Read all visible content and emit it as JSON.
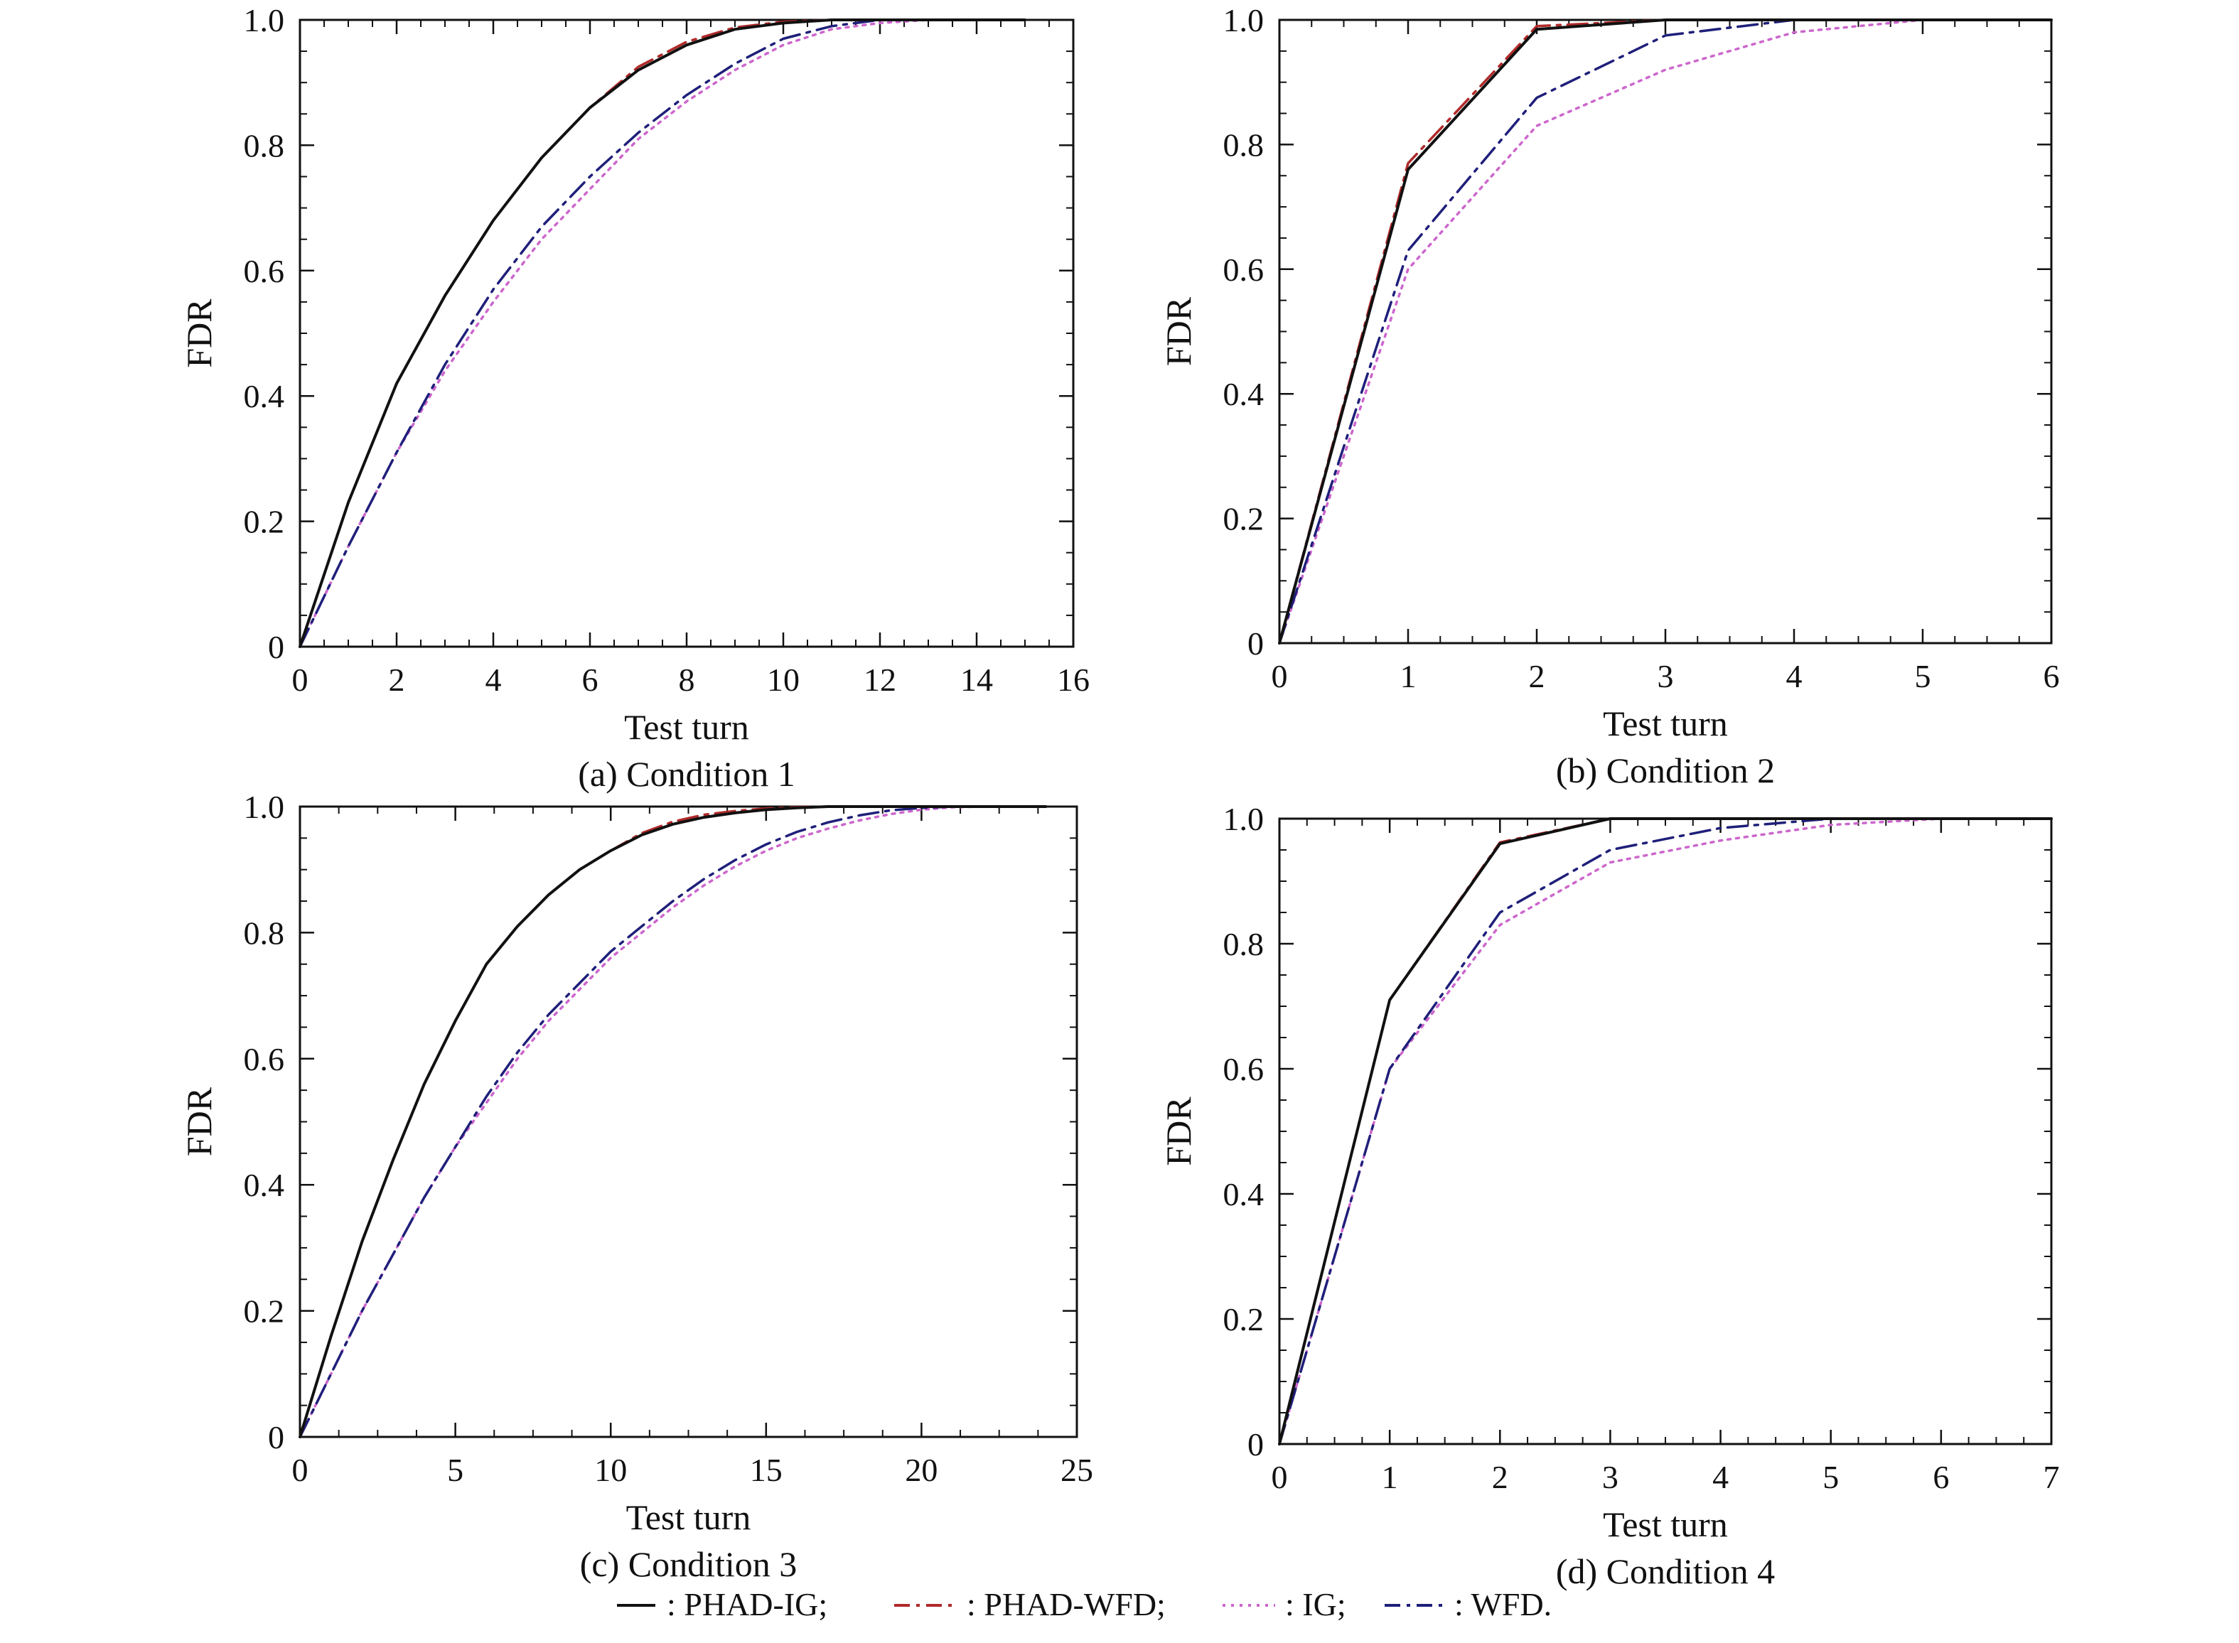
{
  "chart_data": [
    {
      "type": "line",
      "caption": "(a) Condition 1",
      "xlabel": "Test turn",
      "ylabel": "FDR",
      "xlim": [
        0,
        16
      ],
      "ylim": [
        0,
        1.0
      ],
      "xticks": [
        0,
        2,
        4,
        6,
        8,
        10,
        12,
        14,
        16
      ],
      "yticks": [
        0,
        0.2,
        0.4,
        0.6,
        0.8,
        1.0
      ],
      "ytick_labels": [
        "0",
        "0.2",
        "0.4",
        "0.6",
        "0.8",
        "1.0"
      ],
      "grid": false,
      "series": [
        {
          "key": "phad_ig",
          "x": [
            0,
            1,
            2,
            3,
            4,
            5,
            6,
            7,
            8,
            9,
            10,
            11,
            12,
            13,
            14,
            15
          ],
          "y": [
            0,
            0.23,
            0.42,
            0.56,
            0.68,
            0.78,
            0.86,
            0.92,
            0.96,
            0.985,
            0.995,
            1.0,
            1.0,
            1.0,
            1.0,
            1.0
          ]
        },
        {
          "key": "phad_wfd",
          "x": [
            0,
            1,
            2,
            3,
            4,
            5,
            6,
            7,
            8,
            9,
            10,
            11,
            12,
            13,
            14,
            15
          ],
          "y": [
            0,
            0.23,
            0.42,
            0.56,
            0.68,
            0.78,
            0.86,
            0.925,
            0.965,
            0.988,
            0.997,
            1.0,
            1.0,
            1.0,
            1.0,
            1.0
          ]
        },
        {
          "key": "ig",
          "x": [
            0,
            1,
            2,
            3,
            4,
            5,
            6,
            7,
            8,
            9,
            10,
            11,
            12,
            13,
            14,
            15
          ],
          "y": [
            0,
            0.16,
            0.31,
            0.44,
            0.55,
            0.65,
            0.73,
            0.81,
            0.87,
            0.92,
            0.96,
            0.985,
            0.995,
            1.0,
            1.0,
            1.0
          ]
        },
        {
          "key": "wfd",
          "x": [
            0,
            1,
            2,
            3,
            4,
            5,
            6,
            7,
            8,
            9,
            10,
            11,
            12,
            13,
            14,
            15
          ],
          "y": [
            0,
            0.16,
            0.31,
            0.45,
            0.57,
            0.67,
            0.75,
            0.82,
            0.88,
            0.93,
            0.97,
            0.99,
            1.0,
            1.0,
            1.0,
            1.0
          ]
        }
      ]
    },
    {
      "type": "line",
      "caption": "(b) Condition 2",
      "xlabel": "Test turn",
      "ylabel": "FDR",
      "xlim": [
        0,
        6
      ],
      "ylim": [
        0,
        1.0
      ],
      "xticks": [
        0,
        1,
        2,
        3,
        4,
        5,
        6
      ],
      "yticks": [
        0,
        0.2,
        0.4,
        0.6,
        0.8,
        1.0
      ],
      "ytick_labels": [
        "0",
        "0.2",
        "0.4",
        "0.6",
        "0.8",
        "1.0"
      ],
      "grid": false,
      "series": [
        {
          "key": "phad_ig",
          "x": [
            0,
            1,
            2,
            3,
            4,
            5,
            6
          ],
          "y": [
            0,
            0.76,
            0.985,
            1.0,
            1.0,
            1.0,
            1.0
          ]
        },
        {
          "key": "phad_wfd",
          "x": [
            0,
            1,
            2,
            3,
            4,
            5,
            6
          ],
          "y": [
            0,
            0.77,
            0.99,
            1.0,
            1.0,
            1.0,
            1.0
          ]
        },
        {
          "key": "ig",
          "x": [
            0,
            1,
            2,
            3,
            4,
            5,
            6
          ],
          "y": [
            0,
            0.6,
            0.83,
            0.92,
            0.98,
            1.0,
            1.0
          ]
        },
        {
          "key": "wfd",
          "x": [
            0,
            1,
            2,
            3,
            4,
            5,
            6
          ],
          "y": [
            0,
            0.63,
            0.875,
            0.975,
            1.0,
            1.0,
            1.0
          ]
        }
      ]
    },
    {
      "type": "line",
      "caption": "(c) Condition 3",
      "xlabel": "Test turn",
      "ylabel": "FDR",
      "xlim": [
        0,
        25
      ],
      "ylim": [
        0,
        1.0
      ],
      "xticks": [
        0,
        5,
        10,
        15,
        20,
        25
      ],
      "yticks": [
        0,
        0.2,
        0.4,
        0.6,
        0.8,
        1.0
      ],
      "ytick_labels": [
        "0",
        "0.2",
        "0.4",
        "0.6",
        "0.8",
        "1.0"
      ],
      "grid": false,
      "series": [
        {
          "key": "phad_ig",
          "x": [
            0,
            1,
            2,
            3,
            4,
            5,
            6,
            7,
            8,
            9,
            10,
            11,
            12,
            13,
            14,
            15,
            16,
            17,
            18,
            19,
            20,
            21,
            22,
            23,
            24
          ],
          "y": [
            0,
            0.16,
            0.31,
            0.44,
            0.56,
            0.66,
            0.75,
            0.81,
            0.86,
            0.9,
            0.93,
            0.955,
            0.972,
            0.983,
            0.99,
            0.995,
            0.998,
            1.0,
            1.0,
            1.0,
            1.0,
            1.0,
            1.0,
            1.0,
            1.0
          ]
        },
        {
          "key": "phad_wfd",
          "x": [
            0,
            1,
            2,
            3,
            4,
            5,
            6,
            7,
            8,
            9,
            10,
            11,
            12,
            13,
            14,
            15,
            16,
            17,
            18,
            19,
            20,
            21,
            22,
            23,
            24
          ],
          "y": [
            0,
            0.16,
            0.31,
            0.44,
            0.56,
            0.66,
            0.75,
            0.81,
            0.86,
            0.9,
            0.93,
            0.958,
            0.976,
            0.987,
            0.993,
            0.997,
            0.999,
            1.0,
            1.0,
            1.0,
            1.0,
            1.0,
            1.0,
            1.0,
            1.0
          ]
        },
        {
          "key": "ig",
          "x": [
            0,
            1,
            2,
            3,
            4,
            5,
            6,
            7,
            8,
            9,
            10,
            11,
            12,
            13,
            14,
            15,
            16,
            17,
            18,
            19,
            20,
            21,
            22,
            23,
            24
          ],
          "y": [
            0,
            0.1,
            0.2,
            0.29,
            0.38,
            0.46,
            0.53,
            0.6,
            0.66,
            0.71,
            0.76,
            0.8,
            0.84,
            0.875,
            0.905,
            0.93,
            0.95,
            0.965,
            0.978,
            0.988,
            0.995,
            0.999,
            1.0,
            1.0,
            1.0
          ]
        },
        {
          "key": "wfd",
          "x": [
            0,
            1,
            2,
            3,
            4,
            5,
            6,
            7,
            8,
            9,
            10,
            11,
            12,
            13,
            14,
            15,
            16,
            17,
            18,
            19,
            20,
            21,
            22,
            23,
            24
          ],
          "y": [
            0,
            0.1,
            0.2,
            0.29,
            0.38,
            0.46,
            0.54,
            0.61,
            0.67,
            0.72,
            0.77,
            0.81,
            0.85,
            0.885,
            0.915,
            0.94,
            0.96,
            0.975,
            0.986,
            0.994,
            0.998,
            1.0,
            1.0,
            1.0,
            1.0
          ]
        }
      ]
    },
    {
      "type": "line",
      "caption": "(d) Condition 4",
      "xlabel": "Test turn",
      "ylabel": "FDR",
      "xlim": [
        0,
        7
      ],
      "ylim": [
        0,
        1.0
      ],
      "xticks": [
        0,
        1,
        2,
        3,
        4,
        5,
        6,
        7
      ],
      "yticks": [
        0,
        0.2,
        0.4,
        0.6,
        0.8,
        1.0
      ],
      "ytick_labels": [
        "0",
        "0.2",
        "0.4",
        "0.6",
        "0.8",
        "1.0"
      ],
      "grid": false,
      "series": [
        {
          "key": "phad_ig",
          "x": [
            0,
            1,
            2,
            3,
            4,
            5,
            6,
            7
          ],
          "y": [
            0,
            0.71,
            0.96,
            1.0,
            1.0,
            1.0,
            1.0,
            1.0
          ]
        },
        {
          "key": "phad_wfd",
          "x": [
            0,
            1,
            2,
            3,
            4,
            5,
            6,
            7
          ],
          "y": [
            0,
            0.71,
            0.962,
            1.0,
            1.0,
            1.0,
            1.0,
            1.0
          ]
        },
        {
          "key": "ig",
          "x": [
            0,
            1,
            2,
            3,
            4,
            5,
            6,
            7
          ],
          "y": [
            0,
            0.6,
            0.83,
            0.93,
            0.965,
            0.99,
            1.0,
            1.0
          ]
        },
        {
          "key": "wfd",
          "x": [
            0,
            1,
            2,
            3,
            4,
            5,
            6,
            7
          ],
          "y": [
            0,
            0.6,
            0.85,
            0.95,
            0.985,
            1.0,
            1.0,
            1.0
          ]
        }
      ]
    }
  ],
  "legend": {
    "placement": "bottom",
    "items": [
      {
        "key": "phad_ig",
        "label": ": PHAD-IG;",
        "color": "#111111",
        "style": "solid"
      },
      {
        "key": "phad_wfd",
        "label": ": PHAD-WFD;",
        "color": "#b02a2a",
        "style": "dashdot"
      },
      {
        "key": "ig",
        "label": ": IG;",
        "color": "#cc66cc",
        "style": "dotted"
      },
      {
        "key": "wfd",
        "label": ": WFD.",
        "color": "#1f1f7a",
        "style": "dashdot"
      }
    ]
  }
}
